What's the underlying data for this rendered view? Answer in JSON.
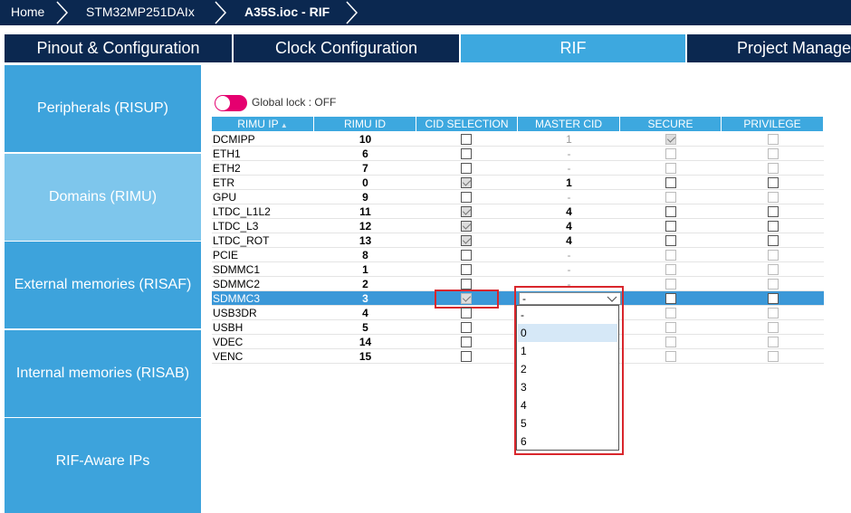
{
  "breadcrumb": [
    "Home",
    "STM32MP251DAIx",
    "A35S.ioc - RIF"
  ],
  "tabs": [
    "Pinout & Configuration",
    "Clock Configuration",
    "RIF",
    "Project Manage"
  ],
  "active_tab": 2,
  "sidebar": [
    "Peripherals (RISUP)",
    "Domains (RIMU)",
    "External memories (RISAF)",
    "Internal memories (RISAB)",
    "RIF-Aware IPs"
  ],
  "active_sidebar": 1,
  "global_lock": {
    "label": "Global lock : OFF",
    "on": false
  },
  "table": {
    "columns": [
      "RIMU IP",
      "RIMU ID",
      "CID SELECTION",
      "MASTER CID",
      "SECURE",
      "PRIVILEGE"
    ],
    "selected_row": 11,
    "rows": [
      {
        "ip": "DCMIPP",
        "id": 10,
        "cid": false,
        "master": "1",
        "secure": true,
        "privilege": false
      },
      {
        "ip": "ETH1",
        "id": 6,
        "cid": false,
        "master": "-",
        "secure": false,
        "privilege": false
      },
      {
        "ip": "ETH2",
        "id": 7,
        "cid": false,
        "master": "-",
        "secure": false,
        "privilege": false
      },
      {
        "ip": "ETR",
        "id": 0,
        "cid": true,
        "master": "1",
        "secure": false,
        "privilege": false
      },
      {
        "ip": "GPU",
        "id": 9,
        "cid": false,
        "master": "-",
        "secure": false,
        "privilege": false
      },
      {
        "ip": "LTDC_L1L2",
        "id": 11,
        "cid": true,
        "master": "4",
        "secure": false,
        "privilege": false
      },
      {
        "ip": "LTDC_L3",
        "id": 12,
        "cid": true,
        "master": "4",
        "secure": false,
        "privilege": false
      },
      {
        "ip": "LTDC_ROT",
        "id": 13,
        "cid": true,
        "master": "4",
        "secure": false,
        "privilege": false
      },
      {
        "ip": "PCIE",
        "id": 8,
        "cid": false,
        "master": "-",
        "secure": false,
        "privilege": false
      },
      {
        "ip": "SDMMC1",
        "id": 1,
        "cid": false,
        "master": "-",
        "secure": false,
        "privilege": false
      },
      {
        "ip": "SDMMC2",
        "id": 2,
        "cid": false,
        "master": "-",
        "secure": false,
        "privilege": false
      },
      {
        "ip": "SDMMC3",
        "id": 3,
        "cid": true,
        "master": "-",
        "secure": false,
        "privilege": false
      },
      {
        "ip": "USB3DR",
        "id": 4,
        "cid": false,
        "secure": false,
        "privilege": false
      },
      {
        "ip": "USBH",
        "id": 5,
        "cid": false,
        "secure": false,
        "privilege": false
      },
      {
        "ip": "VDEC",
        "id": 14,
        "cid": false,
        "secure": false,
        "privilege": false
      },
      {
        "ip": "VENC",
        "id": 15,
        "cid": false,
        "secure": false,
        "privilege": false
      }
    ]
  },
  "dropdown": {
    "options": [
      "-",
      "0",
      "1",
      "2",
      "3",
      "4",
      "5",
      "6"
    ],
    "highlighted": 1
  }
}
